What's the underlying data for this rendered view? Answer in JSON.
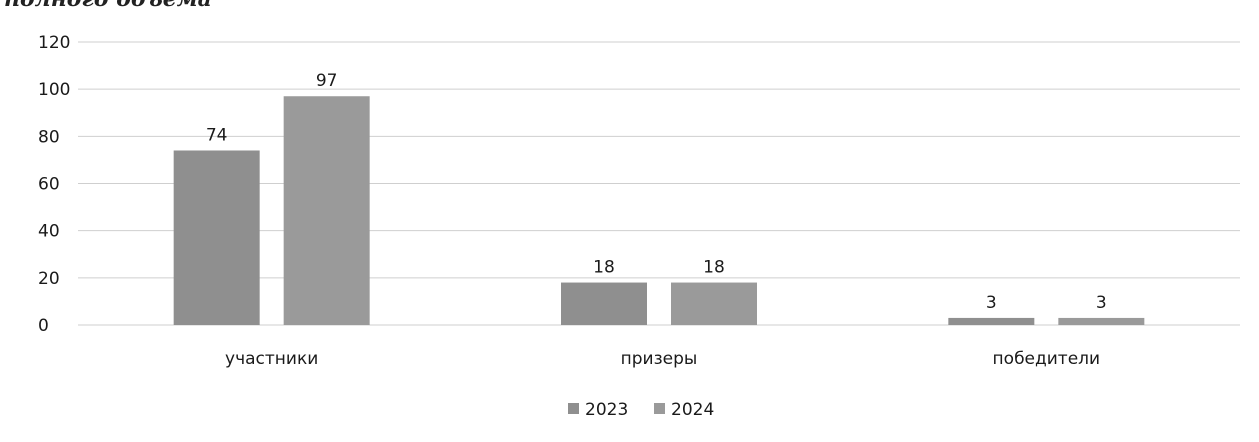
{
  "header": {
    "cut_title": "полного объема"
  },
  "chart_data": {
    "type": "bar",
    "categories": [
      "участники",
      "призеры",
      "победители"
    ],
    "series": [
      {
        "name": "2023",
        "values": [
          74,
          18,
          3
        ]
      },
      {
        "name": "2024",
        "values": [
          97,
          18,
          3
        ]
      }
    ],
    "ylim": [
      0,
      120
    ],
    "yticks": [
      "0",
      "20",
      "40",
      "60",
      "80",
      "100",
      "120"
    ],
    "grid": true,
    "legend": "bottom",
    "colors": {
      "series_2023": "#8f8f8f",
      "series_2024": "#9a9a9a",
      "grid": "#cfcfcf"
    }
  }
}
